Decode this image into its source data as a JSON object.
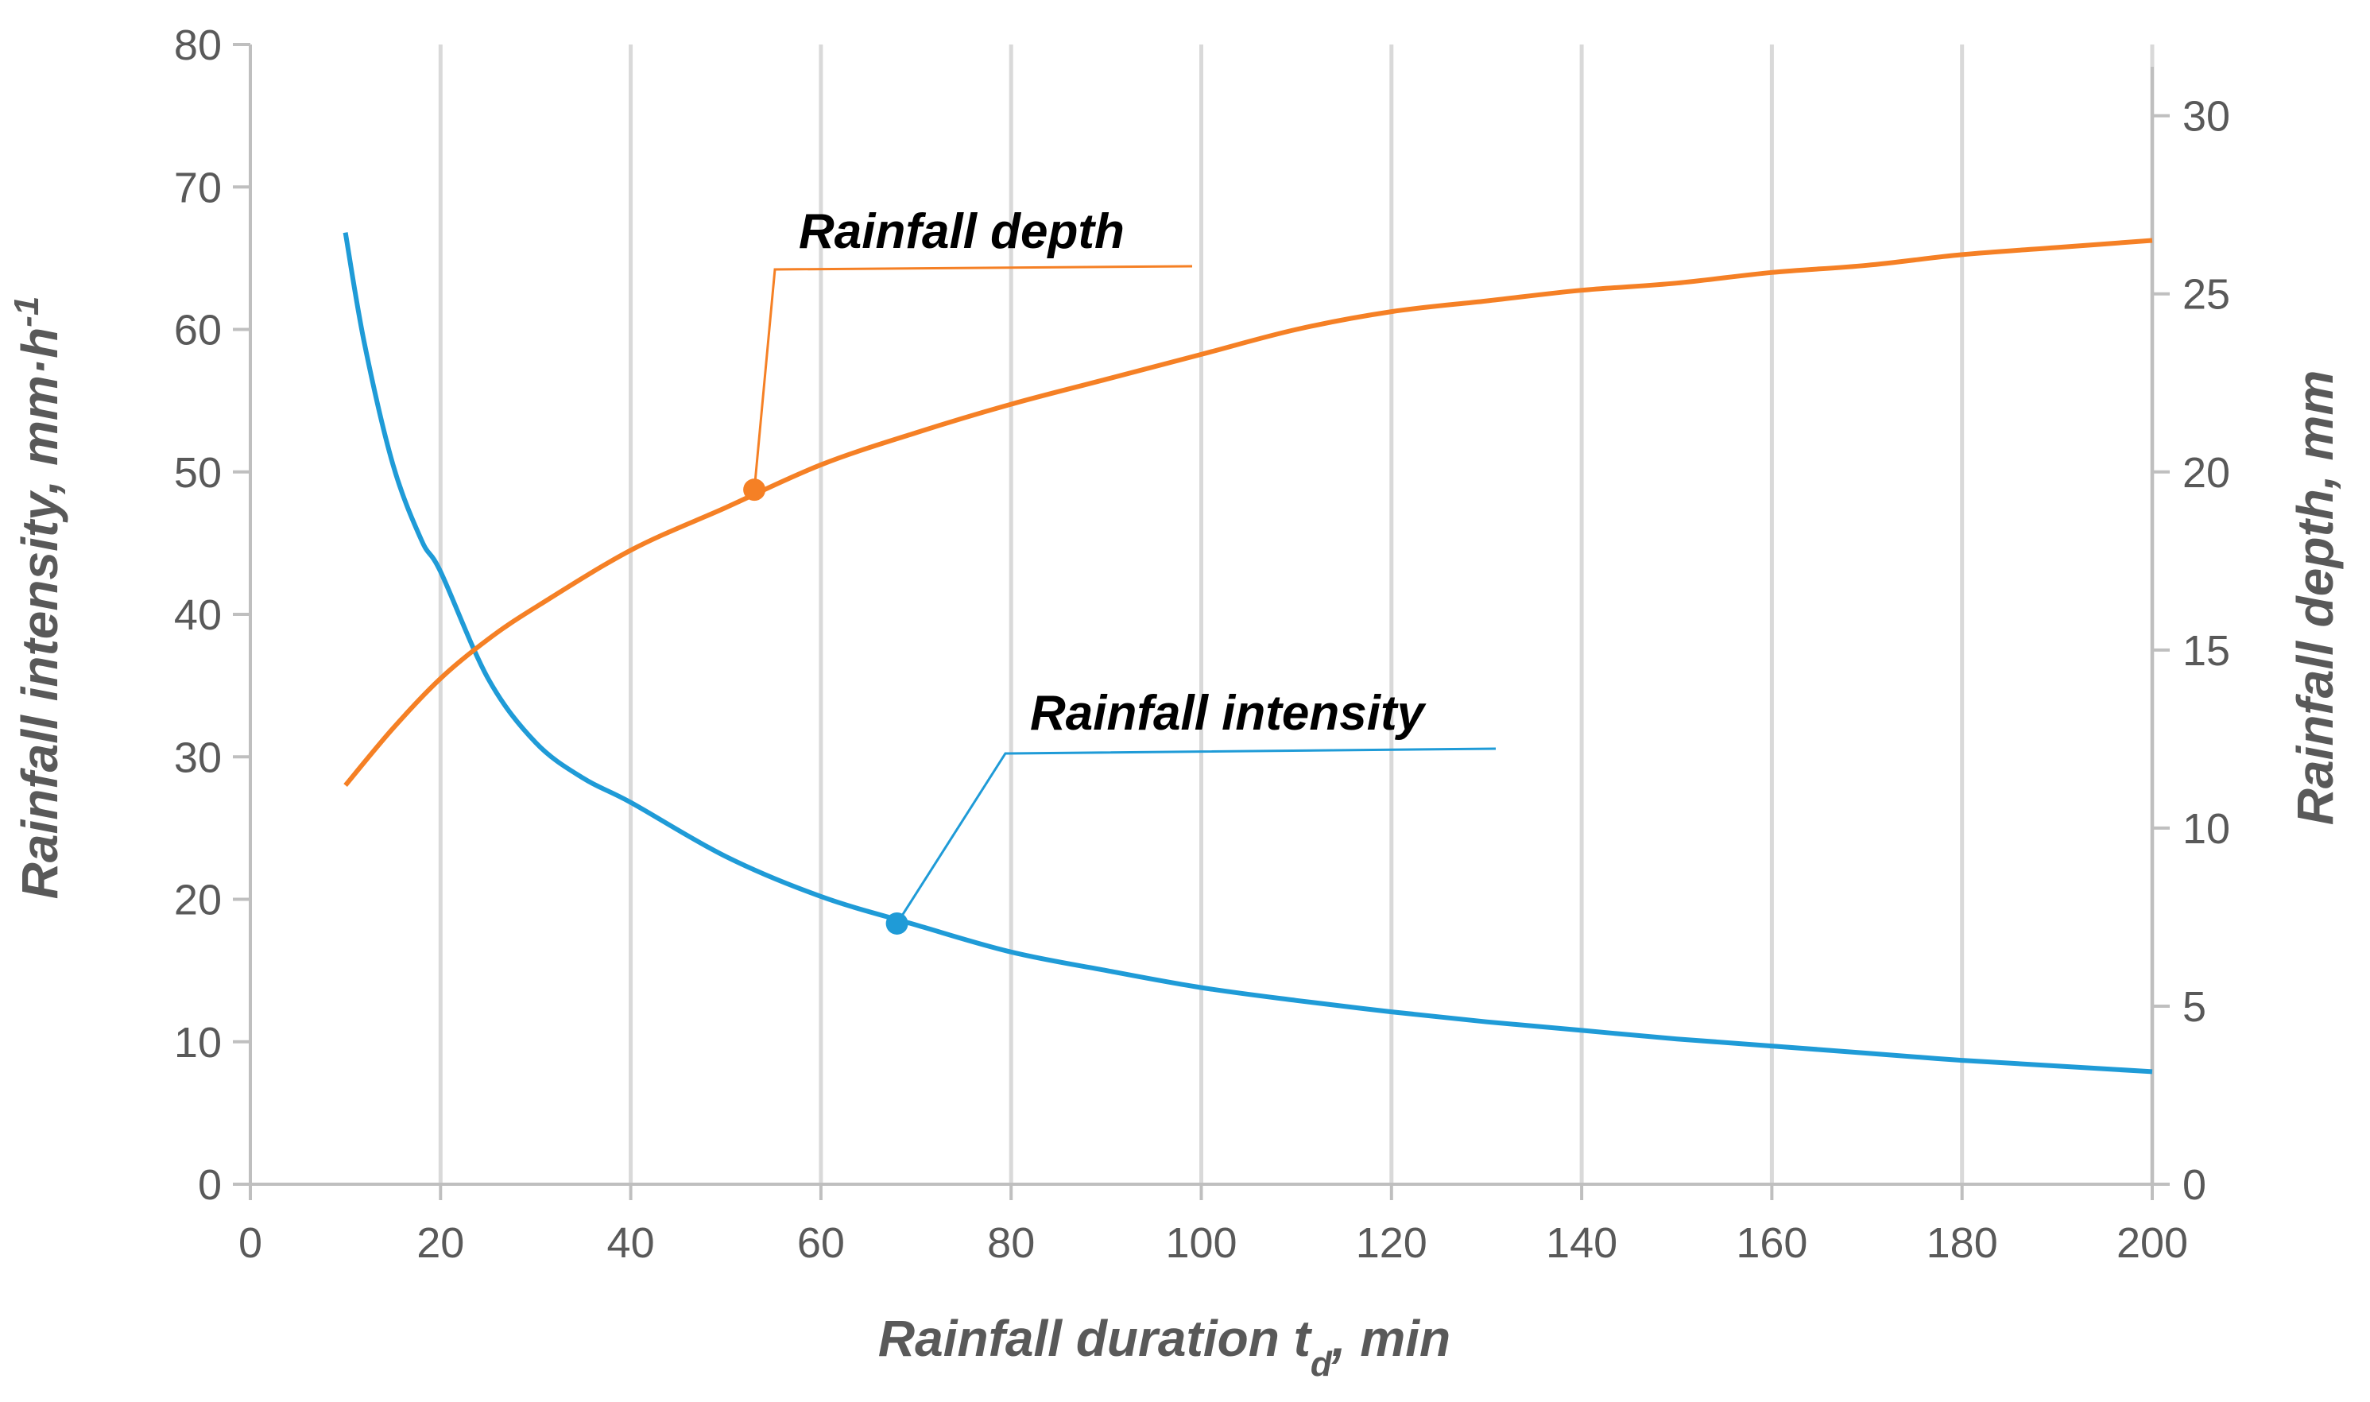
{
  "chart_data": {
    "type": "line",
    "title": "",
    "xlabel": {
      "main": "Rainfall duration t",
      "sub": "d",
      "tail": ", min"
    },
    "ylabel": {
      "main": "Rainfall intensity, mm·h",
      "sup": "-1"
    },
    "y2label": "Rainfall depth, mm",
    "xlim": [
      0,
      200
    ],
    "ylim": [
      0,
      80
    ],
    "y2lim": [
      0,
      32
    ],
    "xticks": [
      0,
      20,
      40,
      60,
      80,
      100,
      120,
      140,
      160,
      180,
      200
    ],
    "yticks": [
      0,
      10,
      20,
      30,
      40,
      50,
      60,
      70,
      80
    ],
    "y2ticks": [
      0,
      5,
      10,
      15,
      20,
      25,
      30
    ],
    "grid": "vertical",
    "series": [
      {
        "name": "Rainfall intensity",
        "axis": "left",
        "color": "#1f9bd7",
        "x": [
          10,
          12,
          15,
          18,
          20,
          25,
          30,
          35,
          40,
          50,
          60,
          70,
          80,
          90,
          100,
          110,
          120,
          130,
          140,
          150,
          160,
          170,
          180,
          190,
          200
        ],
        "values": [
          66.8,
          59.0,
          50.5,
          45.2,
          43.0,
          35.5,
          31.0,
          28.5,
          26.8,
          23.0,
          20.2,
          18.2,
          16.3,
          15.0,
          13.8,
          12.9,
          12.1,
          11.4,
          10.8,
          10.2,
          9.7,
          9.2,
          8.7,
          8.3,
          7.9
        ]
      },
      {
        "name": "Rainfall depth",
        "axis": "right",
        "color": "#f58025",
        "x": [
          10,
          15,
          20,
          25,
          30,
          40,
          50,
          60,
          70,
          80,
          90,
          100,
          110,
          120,
          130,
          140,
          150,
          160,
          170,
          180,
          190,
          200
        ],
        "values": [
          11.2,
          12.8,
          14.2,
          15.3,
          16.2,
          17.8,
          19.0,
          20.2,
          21.1,
          21.9,
          22.6,
          23.3,
          24.0,
          24.5,
          24.8,
          25.1,
          25.3,
          25.6,
          25.8,
          26.1,
          26.3,
          26.5
        ]
      }
    ],
    "annotations": [
      {
        "text": "Rainfall depth",
        "series": "Rainfall depth",
        "x": 53,
        "y": 19.5
      },
      {
        "text": "Rainfall intensity",
        "series": "Rainfall intensity",
        "x": 68,
        "y": 18.3
      }
    ]
  }
}
